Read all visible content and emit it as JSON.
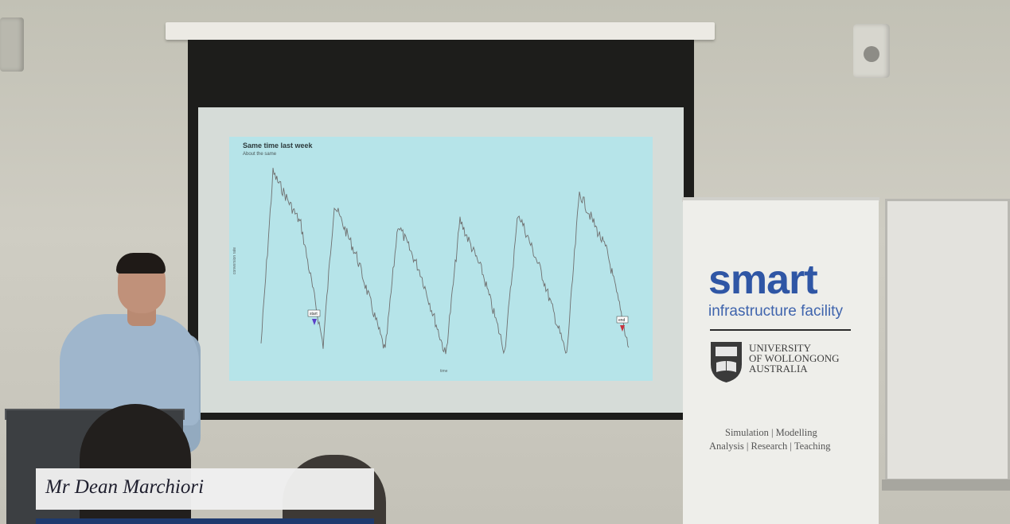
{
  "slide": {
    "title": "Same time last week",
    "subtitle": "About the same",
    "y_axis_label": "conversion rate",
    "x_axis_label": "time",
    "marker_start": "start",
    "marker_end": "end"
  },
  "banner": {
    "brand": "smart",
    "subtitle": "infrastructure facility",
    "university": [
      "UNIVERSITY",
      "OF WOLLONGONG",
      "AUSTRALIA"
    ],
    "tagline_line1": "Simulation | Modelling",
    "tagline_line2": "Analysis | Research | Teaching",
    "brand_color": "#2f56a5"
  },
  "caption": {
    "speaker_name": "Mr Dean Marchiori"
  }
}
